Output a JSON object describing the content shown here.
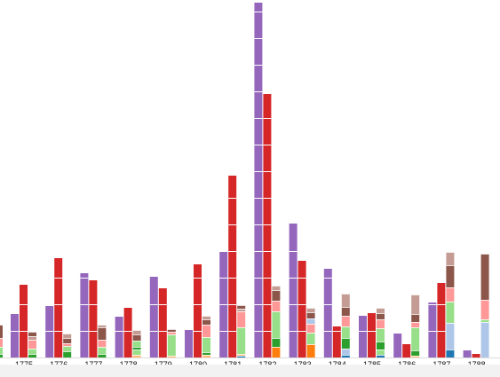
{
  "chart_data": {
    "type": "bar",
    "title": "",
    "xlabel": "",
    "ylabel": "",
    "ylim": [
      0,
      400
    ],
    "grid": false,
    "legend": "none",
    "categories": [
      "1775",
      "1776",
      "1777",
      "1778",
      "1779",
      "1780",
      "1781",
      "1782",
      "1783",
      "1784",
      "1785",
      "1786",
      "1787",
      "1788"
    ],
    "series": [
      {
        "color": "#9467bd",
        "values": [
          49,
          58,
          95,
          46,
          91,
          31,
          119,
          400,
          151,
          100,
          47,
          27,
          62,
          8
        ]
      },
      {
        "color": "#d62728",
        "values": [
          82,
          112,
          87,
          56,
          78,
          105,
          205,
          297,
          109,
          35,
          50,
          15,
          84,
          4
        ]
      }
    ],
    "stacked_columns": [
      {
        "category": "1775",
        "segments": [
          {
            "color": "#2ca02c",
            "value": 4
          },
          {
            "color": "#98df8a",
            "value": 6
          },
          {
            "color": "#ff9896",
            "value": 10
          },
          {
            "color": "#c49c94",
            "value": 4
          },
          {
            "color": "#8c564b",
            "value": 5
          }
        ]
      },
      {
        "category": "1776",
        "segments": [
          {
            "color": "#2ca02c",
            "value": 7
          },
          {
            "color": "#98df8a",
            "value": 6
          },
          {
            "color": "#ff9896",
            "value": 3
          },
          {
            "color": "#8c564b",
            "value": 6
          },
          {
            "color": "#c49c94",
            "value": 5
          }
        ]
      },
      {
        "category": "1777",
        "segments": [
          {
            "color": "#2ca02c",
            "value": 4
          },
          {
            "color": "#98df8a",
            "value": 8
          },
          {
            "color": "#ff9896",
            "value": 8
          },
          {
            "color": "#8c564b",
            "value": 14
          },
          {
            "color": "#c49c94",
            "value": 3
          }
        ]
      },
      {
        "category": "1778",
        "segments": [
          {
            "color": "#ffbb78",
            "value": 3
          },
          {
            "color": "#98df8a",
            "value": 6
          },
          {
            "color": "#2ca02c",
            "value": 3
          },
          {
            "color": "#98df8a",
            "value": 7
          },
          {
            "color": "#8c564b",
            "value": 7
          },
          {
            "color": "#c49c94",
            "value": 5
          }
        ]
      },
      {
        "category": "1779",
        "segments": [
          {
            "color": "#ffbb78",
            "value": 2
          },
          {
            "color": "#98df8a",
            "value": 24
          },
          {
            "color": "#ff9896",
            "value": 3
          },
          {
            "color": "#8c564b",
            "value": 3
          }
        ]
      },
      {
        "category": "1780",
        "segments": [
          {
            "color": "#ffbb78",
            "value": 3
          },
          {
            "color": "#2ca02c",
            "value": 3
          },
          {
            "color": "#98df8a",
            "value": 17
          },
          {
            "color": "#ff9896",
            "value": 14
          },
          {
            "color": "#8c564b",
            "value": 6
          },
          {
            "color": "#c49c94",
            "value": 4
          }
        ]
      },
      {
        "category": "1781",
        "segments": [
          {
            "color": "#1f77b4",
            "value": 2
          },
          {
            "color": "#ffbb78",
            "value": 2
          },
          {
            "color": "#98df8a",
            "value": 30
          },
          {
            "color": "#ff9896",
            "value": 18
          },
          {
            "color": "#c49c94",
            "value": 3
          },
          {
            "color": "#8c564b",
            "value": 4
          }
        ]
      },
      {
        "category": "1782",
        "segments": [
          {
            "color": "#ff7f0e",
            "value": 12
          },
          {
            "color": "#2ca02c",
            "value": 10
          },
          {
            "color": "#98df8a",
            "value": 30
          },
          {
            "color": "#ff9896",
            "value": 12
          },
          {
            "color": "#8c564b",
            "value": 12
          },
          {
            "color": "#c49c94",
            "value": 5
          }
        ]
      },
      {
        "category": "1783",
        "segments": [
          {
            "color": "#ff7f0e",
            "value": 15
          },
          {
            "color": "#98df8a",
            "value": 13
          },
          {
            "color": "#ff9896",
            "value": 10
          },
          {
            "color": "#aec7e8",
            "value": 6
          },
          {
            "color": "#8c564b",
            "value": 7
          },
          {
            "color": "#c49c94",
            "value": 5
          }
        ]
      },
      {
        "category": "1784",
        "segments": [
          {
            "color": "#1f77b4",
            "value": 3
          },
          {
            "color": "#aec7e8",
            "value": 7
          },
          {
            "color": "#2ca02c",
            "value": 12
          },
          {
            "color": "#98df8a",
            "value": 13
          },
          {
            "color": "#ff9896",
            "value": 12
          },
          {
            "color": "#8c564b",
            "value": 10
          },
          {
            "color": "#c49c94",
            "value": 15
          }
        ]
      },
      {
        "category": "1785",
        "segments": [
          {
            "color": "#1f77b4",
            "value": 3
          },
          {
            "color": "#98df8a",
            "value": 6
          },
          {
            "color": "#2ca02c",
            "value": 9
          },
          {
            "color": "#98df8a",
            "value": 15
          },
          {
            "color": "#ff9896",
            "value": 10
          },
          {
            "color": "#8c564b",
            "value": 7
          },
          {
            "color": "#c49c94",
            "value": 6
          }
        ]
      },
      {
        "category": "1786",
        "segments": [
          {
            "color": "#ffbb78",
            "value": 2
          },
          {
            "color": "#2ca02c",
            "value": 6
          },
          {
            "color": "#98df8a",
            "value": 26
          },
          {
            "color": "#ff9896",
            "value": 6
          },
          {
            "color": "#8c564b",
            "value": 9
          },
          {
            "color": "#c49c94",
            "value": 22
          }
        ]
      },
      {
        "category": "1787",
        "segments": [
          {
            "color": "#1f77b4",
            "value": 9
          },
          {
            "color": "#aec7e8",
            "value": 30
          },
          {
            "color": "#98df8a",
            "value": 24
          },
          {
            "color": "#ff9896",
            "value": 16
          },
          {
            "color": "#8c564b",
            "value": 25
          },
          {
            "color": "#c49c94",
            "value": 15
          }
        ]
      },
      {
        "category": "1788",
        "segments": [
          {
            "color": "#aec7e8",
            "value": 40
          },
          {
            "color": "#98df8a",
            "value": 3
          },
          {
            "color": "#ff9896",
            "value": 22
          },
          {
            "color": "#8c564b",
            "value": 52
          }
        ]
      }
    ],
    "edge_column_left": [
      {
        "color": "#2ca02c",
        "value": 4
      },
      {
        "color": "#98df8a",
        "value": 8
      },
      {
        "color": "#ff9896",
        "value": 10
      },
      {
        "color": "#8c564b",
        "value": 15
      }
    ]
  }
}
